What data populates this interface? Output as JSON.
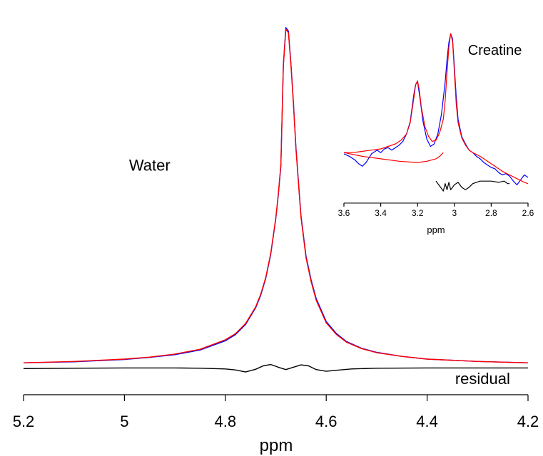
{
  "chart_data": [
    {
      "type": "line",
      "xlabel": "ppm",
      "ylabel": "",
      "xlim": [
        5.2,
        4.2
      ],
      "x_reversed": true,
      "ylim": [
        -0.08,
        1.05
      ],
      "y_axis_visible": false,
      "grid": false,
      "ticks": [
        "5.2",
        "5",
        "4.8",
        "4.6",
        "4.4",
        "4.2"
      ],
      "annotations": [
        {
          "text": "Water",
          "x": 4.95,
          "y": 0.59
        },
        {
          "text": "residual",
          "x": 4.29,
          "y": -0.04
        }
      ],
      "series": [
        {
          "color": "#0000ff",
          "x": [
            5.2,
            5.1,
            5.0,
            4.95,
            4.9,
            4.85,
            4.8,
            4.78,
            4.76,
            4.74,
            4.73,
            4.72,
            4.71,
            4.7,
            4.695,
            4.69,
            4.685,
            4.68,
            4.675,
            4.67,
            4.665,
            4.66,
            4.65,
            4.64,
            4.63,
            4.62,
            4.6,
            4.58,
            4.56,
            4.53,
            4.5,
            4.45,
            4.4,
            4.3,
            4.2
          ],
          "y": [
            0.01,
            0.013,
            0.02,
            0.026,
            0.034,
            0.048,
            0.075,
            0.093,
            0.123,
            0.172,
            0.209,
            0.259,
            0.33,
            0.435,
            0.505,
            0.59,
            0.89,
            1.0,
            0.99,
            0.895,
            0.78,
            0.645,
            0.445,
            0.325,
            0.255,
            0.2,
            0.132,
            0.097,
            0.073,
            0.053,
            0.041,
            0.029,
            0.021,
            0.014,
            0.01
          ]
        },
        {
          "color": "#ff0000",
          "x": [
            5.2,
            5.1,
            5.0,
            4.95,
            4.9,
            4.85,
            4.8,
            4.78,
            4.76,
            4.74,
            4.73,
            4.72,
            4.71,
            4.7,
            4.695,
            4.69,
            4.685,
            4.68,
            4.675,
            4.67,
            4.665,
            4.66,
            4.65,
            4.64,
            4.63,
            4.62,
            4.6,
            4.58,
            4.56,
            4.53,
            4.5,
            4.45,
            4.4,
            4.3,
            4.2
          ],
          "y": [
            0.01,
            0.014,
            0.021,
            0.027,
            0.036,
            0.05,
            0.078,
            0.096,
            0.126,
            0.175,
            0.212,
            0.262,
            0.333,
            0.438,
            0.508,
            0.595,
            0.885,
            0.995,
            0.985,
            0.89,
            0.775,
            0.64,
            0.44,
            0.32,
            0.25,
            0.195,
            0.128,
            0.094,
            0.071,
            0.052,
            0.04,
            0.029,
            0.021,
            0.014,
            0.01
          ]
        },
        {
          "name": "residual",
          "color": "#000000",
          "x": [
            5.2,
            5.0,
            4.9,
            4.85,
            4.8,
            4.78,
            4.76,
            4.74,
            4.725,
            4.71,
            4.695,
            4.68,
            4.665,
            4.65,
            4.635,
            4.62,
            4.6,
            4.58,
            4.55,
            4.5,
            4.4,
            4.3,
            4.2
          ],
          "y": [
            -0.007,
            -0.005,
            -0.005,
            -0.006,
            -0.008,
            -0.011,
            -0.017,
            -0.009,
            0.001,
            0.005,
            -0.003,
            -0.01,
            -0.003,
            0.004,
            0.001,
            -0.01,
            -0.015,
            -0.012,
            -0.008,
            -0.006,
            -0.005,
            -0.005,
            -0.005
          ]
        }
      ]
    },
    {
      "type": "line",
      "xlabel": "ppm",
      "ylabel": "",
      "xlim": [
        3.6,
        2.6
      ],
      "x_reversed": true,
      "ylim": [
        -0.36,
        1.02
      ],
      "y_axis_visible": false,
      "grid": false,
      "ticks": [
        "3.6",
        "3.4",
        "3.2",
        "3",
        "2.8",
        "2.6"
      ],
      "annotations": [
        {
          "text": "Creatine",
          "x": 2.78,
          "y": 0.85
        }
      ],
      "series": [
        {
          "color": "#0000ff",
          "x": [
            3.6,
            3.57,
            3.54,
            3.52,
            3.5,
            3.48,
            3.45,
            3.42,
            3.4,
            3.38,
            3.36,
            3.34,
            3.32,
            3.3,
            3.28,
            3.26,
            3.24,
            3.22,
            3.21,
            3.2,
            3.19,
            3.17,
            3.15,
            3.13,
            3.11,
            3.09,
            3.07,
            3.05,
            3.04,
            3.03,
            3.02,
            3.01,
            3.0,
            2.99,
            2.98,
            2.96,
            2.94,
            2.92,
            2.9,
            2.88,
            2.86,
            2.84,
            2.82,
            2.8,
            2.78,
            2.76,
            2.74,
            2.72,
            2.7,
            2.68,
            2.66,
            2.64,
            2.62,
            2.6
          ],
          "y": [
            0.02,
            0.0,
            -0.03,
            -0.06,
            -0.08,
            -0.05,
            0.02,
            0.05,
            0.03,
            0.06,
            0.07,
            0.05,
            0.07,
            0.09,
            0.12,
            0.18,
            0.28,
            0.5,
            0.58,
            0.6,
            0.5,
            0.28,
            0.14,
            0.08,
            0.1,
            0.18,
            0.34,
            0.6,
            0.78,
            0.92,
            0.99,
            0.95,
            0.72,
            0.48,
            0.3,
            0.16,
            0.1,
            0.05,
            0.03,
            0.0,
            -0.02,
            -0.05,
            -0.07,
            -0.09,
            -0.1,
            -0.13,
            -0.15,
            -0.14,
            -0.16,
            -0.2,
            -0.23,
            -0.19,
            -0.15,
            -0.17
          ]
        },
        {
          "color": "#ff0000",
          "x": [
            3.6,
            3.55,
            3.5,
            3.45,
            3.4,
            3.36,
            3.32,
            3.29,
            3.26,
            3.24,
            3.22,
            3.21,
            3.2,
            3.19,
            3.18,
            3.16,
            3.14,
            3.12,
            3.1,
            3.08,
            3.06,
            3.05,
            3.04,
            3.03,
            3.02,
            3.01,
            3.0,
            2.99,
            2.98,
            2.96,
            2.94,
            2.92,
            2.9,
            2.86,
            2.82,
            2.78,
            2.74,
            2.7,
            2.66,
            2.62,
            2.6
          ],
          "y": [
            0.03,
            0.03,
            0.04,
            0.05,
            0.06,
            0.08,
            0.1,
            0.13,
            0.18,
            0.27,
            0.47,
            0.58,
            0.61,
            0.53,
            0.4,
            0.24,
            0.16,
            0.12,
            0.13,
            0.19,
            0.3,
            0.45,
            0.68,
            0.88,
            0.99,
            0.93,
            0.68,
            0.42,
            0.27,
            0.15,
            0.09,
            0.05,
            0.03,
            0.0,
            -0.04,
            -0.08,
            -0.12,
            -0.15,
            -0.18,
            -0.21,
            -0.22
          ]
        },
        {
          "color": "#ff0000",
          "x": [
            3.6,
            3.5,
            3.4,
            3.3,
            3.2,
            3.15,
            3.1,
            3.08,
            3.06
          ],
          "y": [
            0.03,
            0.0,
            -0.02,
            -0.04,
            -0.05,
            -0.04,
            -0.02,
            0.0,
            0.03
          ]
        },
        {
          "name": "residual",
          "color": "#000000",
          "x": [
            3.1,
            3.08,
            3.06,
            3.05,
            3.04,
            3.03,
            3.02,
            3.0,
            2.98,
            2.96,
            2.94,
            2.92,
            2.9,
            2.88,
            2.86,
            2.84,
            2.8,
            2.76,
            2.73,
            2.71,
            2.7
          ],
          "y": [
            -0.2,
            -0.24,
            -0.28,
            -0.22,
            -0.27,
            -0.21,
            -0.27,
            -0.23,
            -0.21,
            -0.25,
            -0.27,
            -0.25,
            -0.22,
            -0.21,
            -0.2,
            -0.2,
            -0.2,
            -0.21,
            -0.2,
            -0.22,
            -0.22
          ]
        }
      ]
    }
  ]
}
